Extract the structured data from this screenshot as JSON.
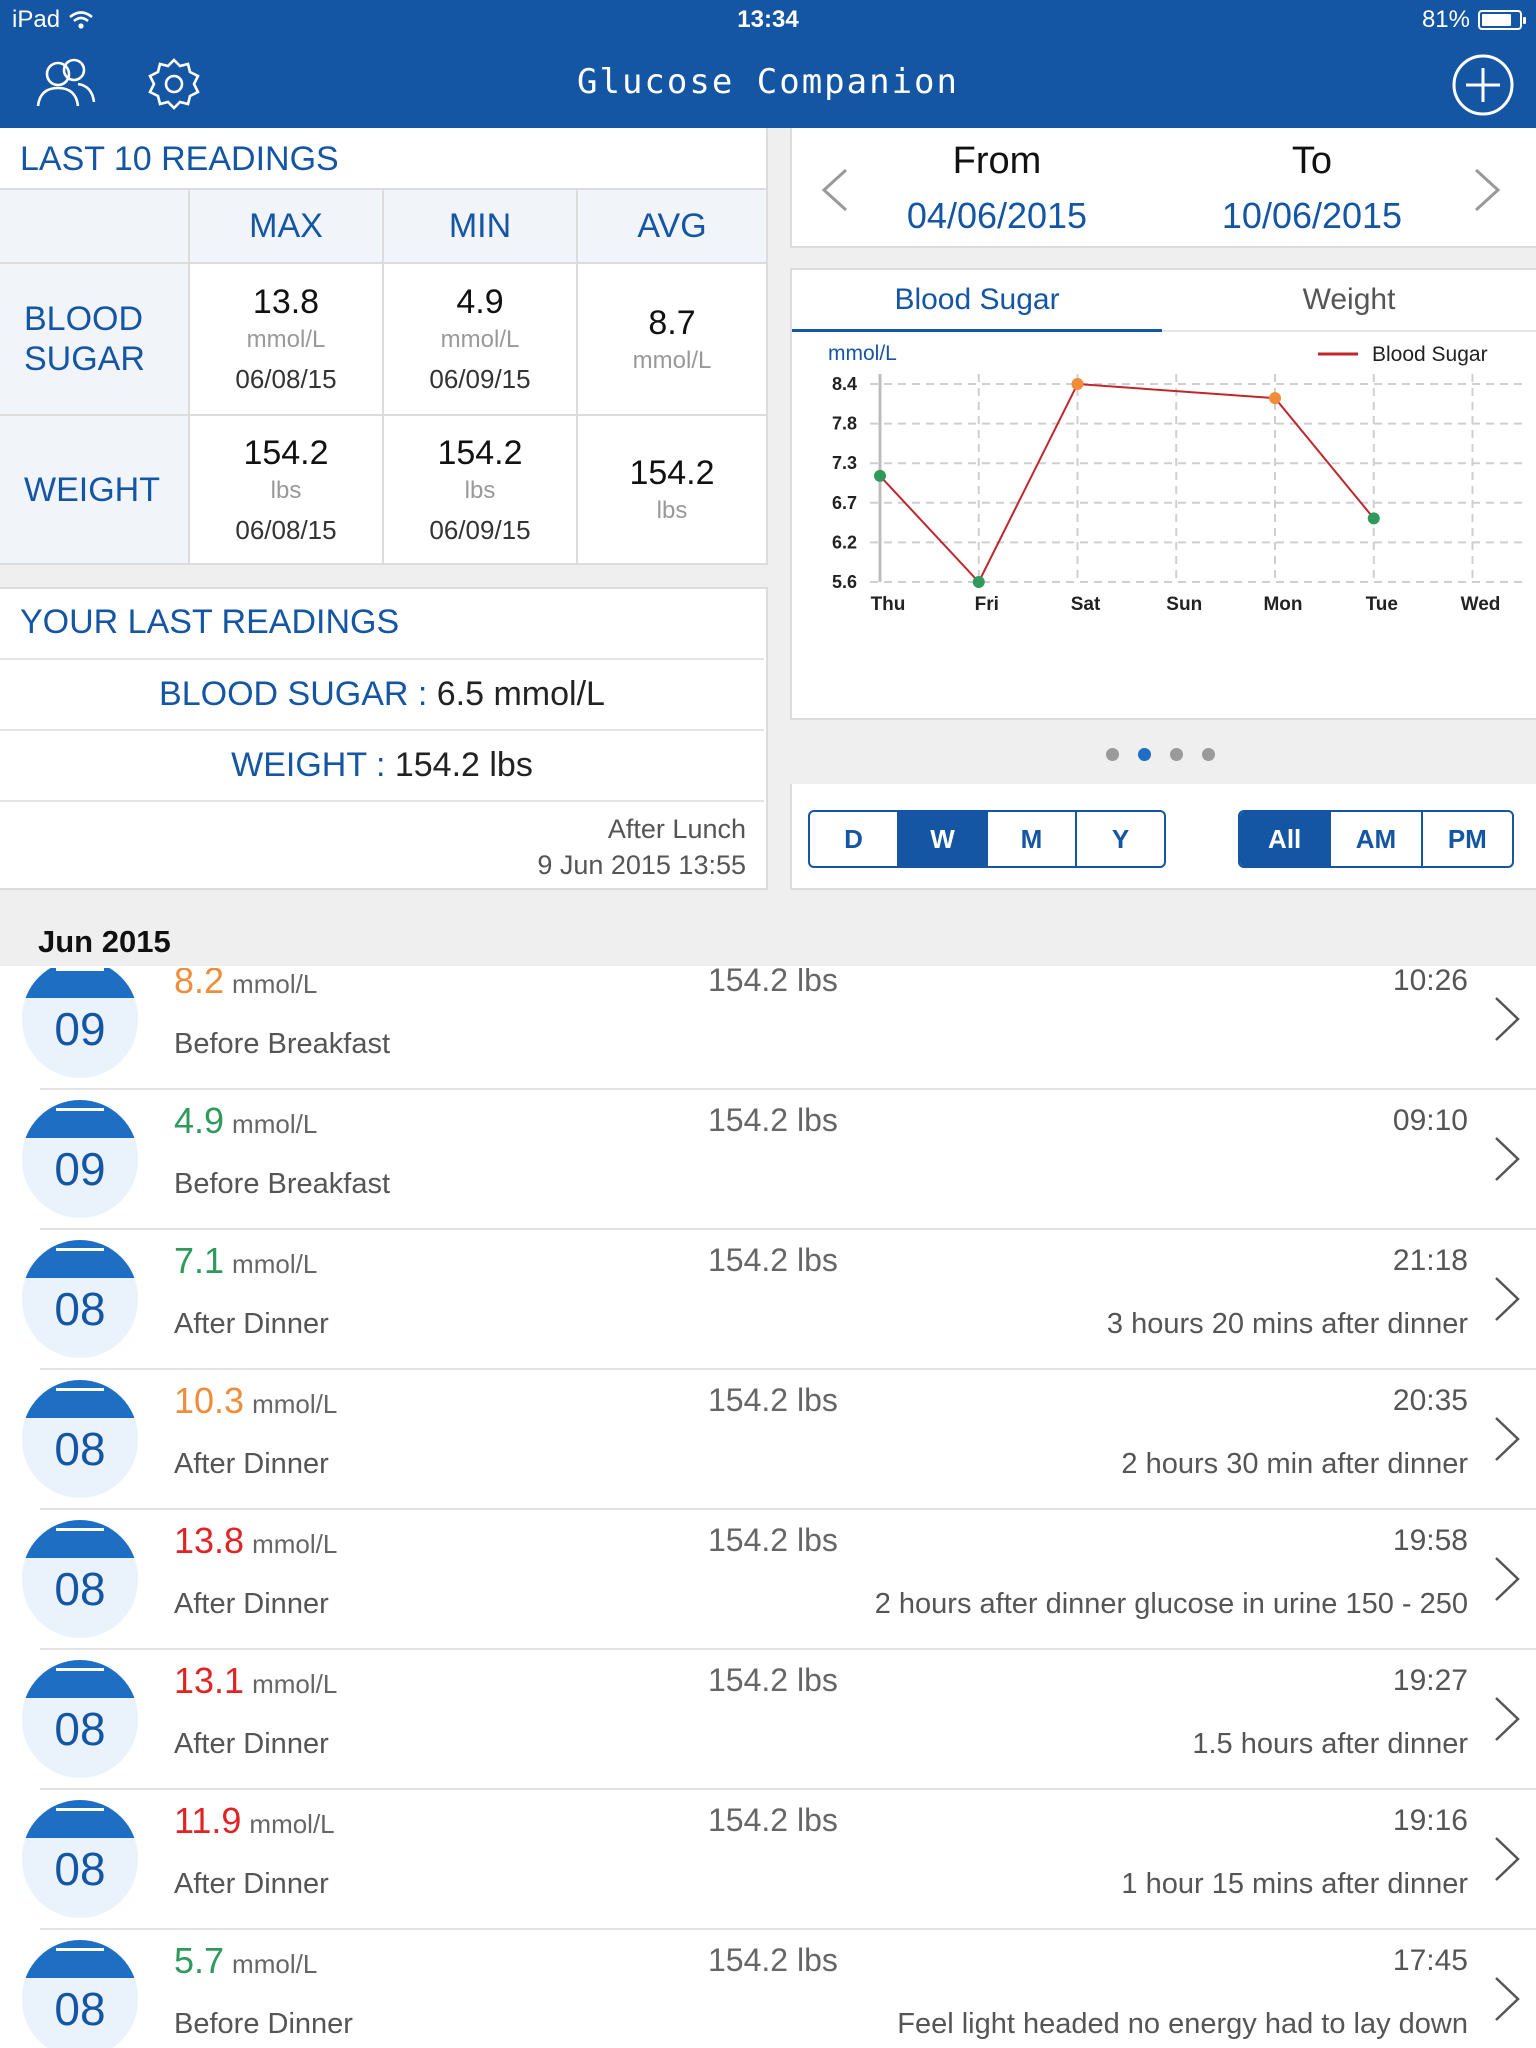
{
  "status": {
    "device": "iPad",
    "time": "13:34",
    "battery": "81%",
    "battery_fraction": 0.81
  },
  "nav": {
    "title": "Glucose Companion"
  },
  "summary": {
    "title": "LAST 10 READINGS",
    "headers": [
      "MAX",
      "MIN",
      "AVG"
    ],
    "blood_sugar": {
      "label1": "BLOOD",
      "label2": "SUGAR",
      "max": "13.8",
      "max_unit": "mmol/L",
      "max_date": "06/08/15",
      "min": "4.9",
      "min_unit": "mmol/L",
      "min_date": "06/09/15",
      "avg": "8.7",
      "avg_unit": "mmol/L"
    },
    "weight": {
      "label": "WEIGHT",
      "max": "154.2",
      "max_unit": "lbs",
      "max_date": "06/08/15",
      "min": "154.2",
      "min_unit": "lbs",
      "min_date": "06/09/15",
      "avg": "154.2",
      "avg_unit": "lbs"
    }
  },
  "last": {
    "title": "YOUR LAST READINGS",
    "bs_label": "BLOOD SUGAR :",
    "bs_value": " 6.5 mmol/L",
    "wt_label": "WEIGHT :",
    "wt_value": " 154.2 lbs",
    "context": "After Lunch",
    "timestamp": "9 Jun 2015 13:55"
  },
  "range": {
    "from_label": "From",
    "from": "04/06/2015",
    "to_label": "To",
    "to": "10/06/2015"
  },
  "tabs": {
    "blood_sugar": "Blood Sugar",
    "weight": "Weight"
  },
  "chart_data": {
    "type": "line",
    "ylabel": "mmol/L",
    "categories": [
      "Thu",
      "Fri",
      "Sat",
      "Sun",
      "Mon",
      "Tue",
      "Wed"
    ],
    "yticks": [
      "8.4",
      "7.8",
      "7.3",
      "6.7",
      "6.2",
      "5.6"
    ],
    "ylim": [
      5.6,
      8.4
    ],
    "legend": "Blood Sugar",
    "legend_position": "top-right",
    "grid": true,
    "series": [
      {
        "name": "Blood Sugar",
        "points": [
          {
            "x": "Thu",
            "y": 7.1,
            "color": "#2f9a5c"
          },
          {
            "x": "Fri",
            "y": 5.6,
            "color": "#2f9a5c"
          },
          {
            "x": "Sat",
            "y": 8.4,
            "color": "#ef8d3a"
          },
          {
            "x": "Mon",
            "y": 8.2,
            "color": "#ef8d3a"
          },
          {
            "x": "Tue",
            "y": 6.5,
            "color": "#2f9a5c"
          }
        ]
      }
    ],
    "line_color": "#c0262c"
  },
  "period": [
    "D",
    "W",
    "M",
    "Y"
  ],
  "timeofday": [
    "All",
    "AM",
    "PM"
  ],
  "month": "Jun 2015",
  "readings": [
    {
      "day": "09",
      "value": "8.2",
      "unit": "mmol/L",
      "level": "orange",
      "weight": "154.2 lbs",
      "time": "10:26",
      "meal": "Before Breakfast",
      "note": ""
    },
    {
      "day": "09",
      "value": "4.9",
      "unit": "mmol/L",
      "level": "green",
      "weight": "154.2 lbs",
      "time": "09:10",
      "meal": "Before Breakfast",
      "note": ""
    },
    {
      "day": "08",
      "value": "7.1",
      "unit": "mmol/L",
      "level": "green",
      "weight": "154.2 lbs",
      "time": "21:18",
      "meal": "After Dinner",
      "note": "3 hours 20 mins after dinner"
    },
    {
      "day": "08",
      "value": "10.3",
      "unit": "mmol/L",
      "level": "orange",
      "weight": "154.2 lbs",
      "time": "20:35",
      "meal": "After Dinner",
      "note": "2 hours 30 min after dinner"
    },
    {
      "day": "08",
      "value": "13.8",
      "unit": "mmol/L",
      "level": "red",
      "weight": "154.2 lbs",
      "time": "19:58",
      "meal": "After Dinner",
      "note": "2 hours after dinner glucose in urine 150 - 250"
    },
    {
      "day": "08",
      "value": "13.1",
      "unit": "mmol/L",
      "level": "red",
      "weight": "154.2 lbs",
      "time": "19:27",
      "meal": "After Dinner",
      "note": "1.5 hours after dinner"
    },
    {
      "day": "08",
      "value": "11.9",
      "unit": "mmol/L",
      "level": "red",
      "weight": "154.2 lbs",
      "time": "19:16",
      "meal": "After Dinner",
      "note": "1 hour 15 mins after dinner"
    },
    {
      "day": "08",
      "value": "5.7",
      "unit": "mmol/L",
      "level": "green",
      "weight": "154.2 lbs",
      "time": "17:45",
      "meal": "Before Dinner",
      "note": "Feel light headed no energy had to lay down"
    }
  ]
}
